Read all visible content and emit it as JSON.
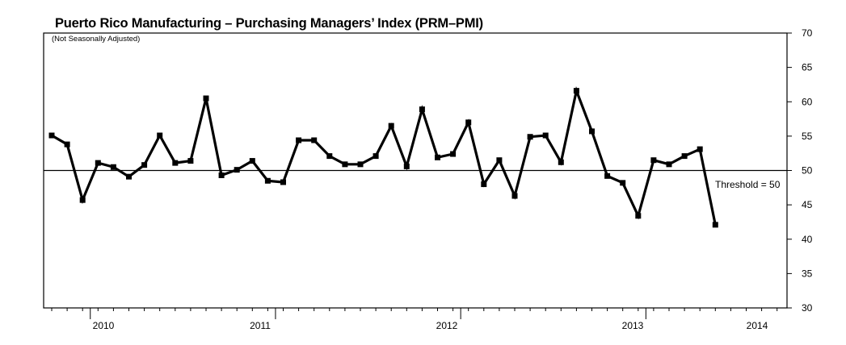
{
  "chart_data": {
    "type": "line",
    "title": "Puerto Rico Manufacturing – Purchasing Managers’ Index (PRM–PMI)",
    "subtitle": "(Not Seasonally Adjusted)",
    "xlabel": "",
    "ylabel": "",
    "ylim": [
      30,
      70
    ],
    "y_ticks": [
      30,
      35,
      40,
      45,
      50,
      55,
      60,
      65,
      70
    ],
    "y_axis_side": "right",
    "grid": false,
    "legend": "none",
    "x_tick_labels": [
      "2010",
      "2011",
      "2012",
      "2013",
      "2014"
    ],
    "threshold": {
      "value": 50,
      "label": "Threshold = 50"
    },
    "line_color": "#000000",
    "series": [
      {
        "values": [
          55.1,
          53.8,
          45.7,
          51.1,
          50.5,
          49.1,
          50.8,
          55.1,
          51.1,
          51.4,
          60.5,
          49.3,
          50.1,
          51.4,
          48.5,
          48.3,
          54.4,
          54.4,
          52.1,
          50.9,
          50.9,
          52.1,
          56.5,
          50.6,
          58.9,
          51.9,
          52.4,
          57.0,
          48.0,
          51.5,
          46.3,
          54.9,
          55.1,
          51.2,
          61.6,
          55.7,
          49.2,
          48.2,
          43.4,
          51.5,
          50.9,
          52.1,
          53.1,
          42.1
        ]
      }
    ]
  }
}
